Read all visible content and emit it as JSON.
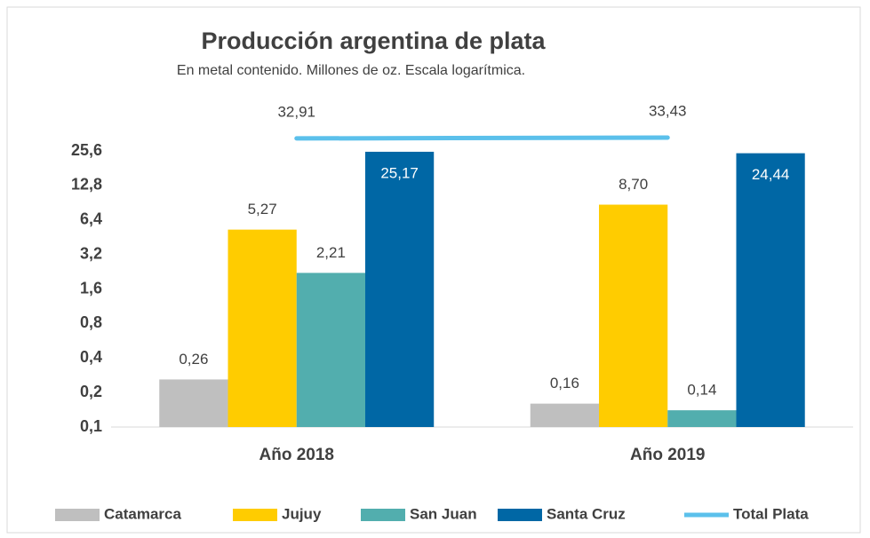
{
  "chart_data": {
    "type": "bar",
    "title": "Producción argentina de plata",
    "subtitle": "En metal contenido. Millones de oz. Escala logarítmica.",
    "categories": [
      "Año 2018",
      "Año 2019"
    ],
    "log_scale": true,
    "grid": false,
    "legend": "bottom",
    "ylim": [
      0.1,
      25.6
    ],
    "yticks": [
      {
        "value": 0.1,
        "label": "0,1"
      },
      {
        "value": 0.2,
        "label": "0,2"
      },
      {
        "value": 0.4,
        "label": "0,4"
      },
      {
        "value": 0.8,
        "label": "0,8"
      },
      {
        "value": 1.6,
        "label": "1,6"
      },
      {
        "value": 3.2,
        "label": "3,2"
      },
      {
        "value": 6.4,
        "label": "6,4"
      },
      {
        "value": 12.8,
        "label": "12,8"
      },
      {
        "value": 25.6,
        "label": "25,6"
      }
    ],
    "series": [
      {
        "name": "Catamarca",
        "color": "#bfbfbf",
        "values": [
          0.26,
          0.16
        ],
        "value_labels": [
          "0,26",
          "0,16"
        ]
      },
      {
        "name": "Jujuy",
        "color": "#ffcc00",
        "values": [
          5.27,
          8.7
        ],
        "value_labels": [
          "5,27",
          "8,70"
        ]
      },
      {
        "name": "San Juan",
        "color": "#52aeae",
        "values": [
          2.21,
          0.14
        ],
        "value_labels": [
          "2,21",
          "0,14"
        ]
      },
      {
        "name": "Santa Cruz",
        "color": "#0067a5",
        "values": [
          25.17,
          24.44
        ],
        "value_labels": [
          "25,17",
          "24,44"
        ]
      },
      {
        "name": "Total Plata",
        "type": "line",
        "color": "#5bc0eb",
        "values": [
          32.91,
          33.43
        ],
        "value_labels": [
          "32,91",
          "33,43"
        ]
      }
    ]
  }
}
